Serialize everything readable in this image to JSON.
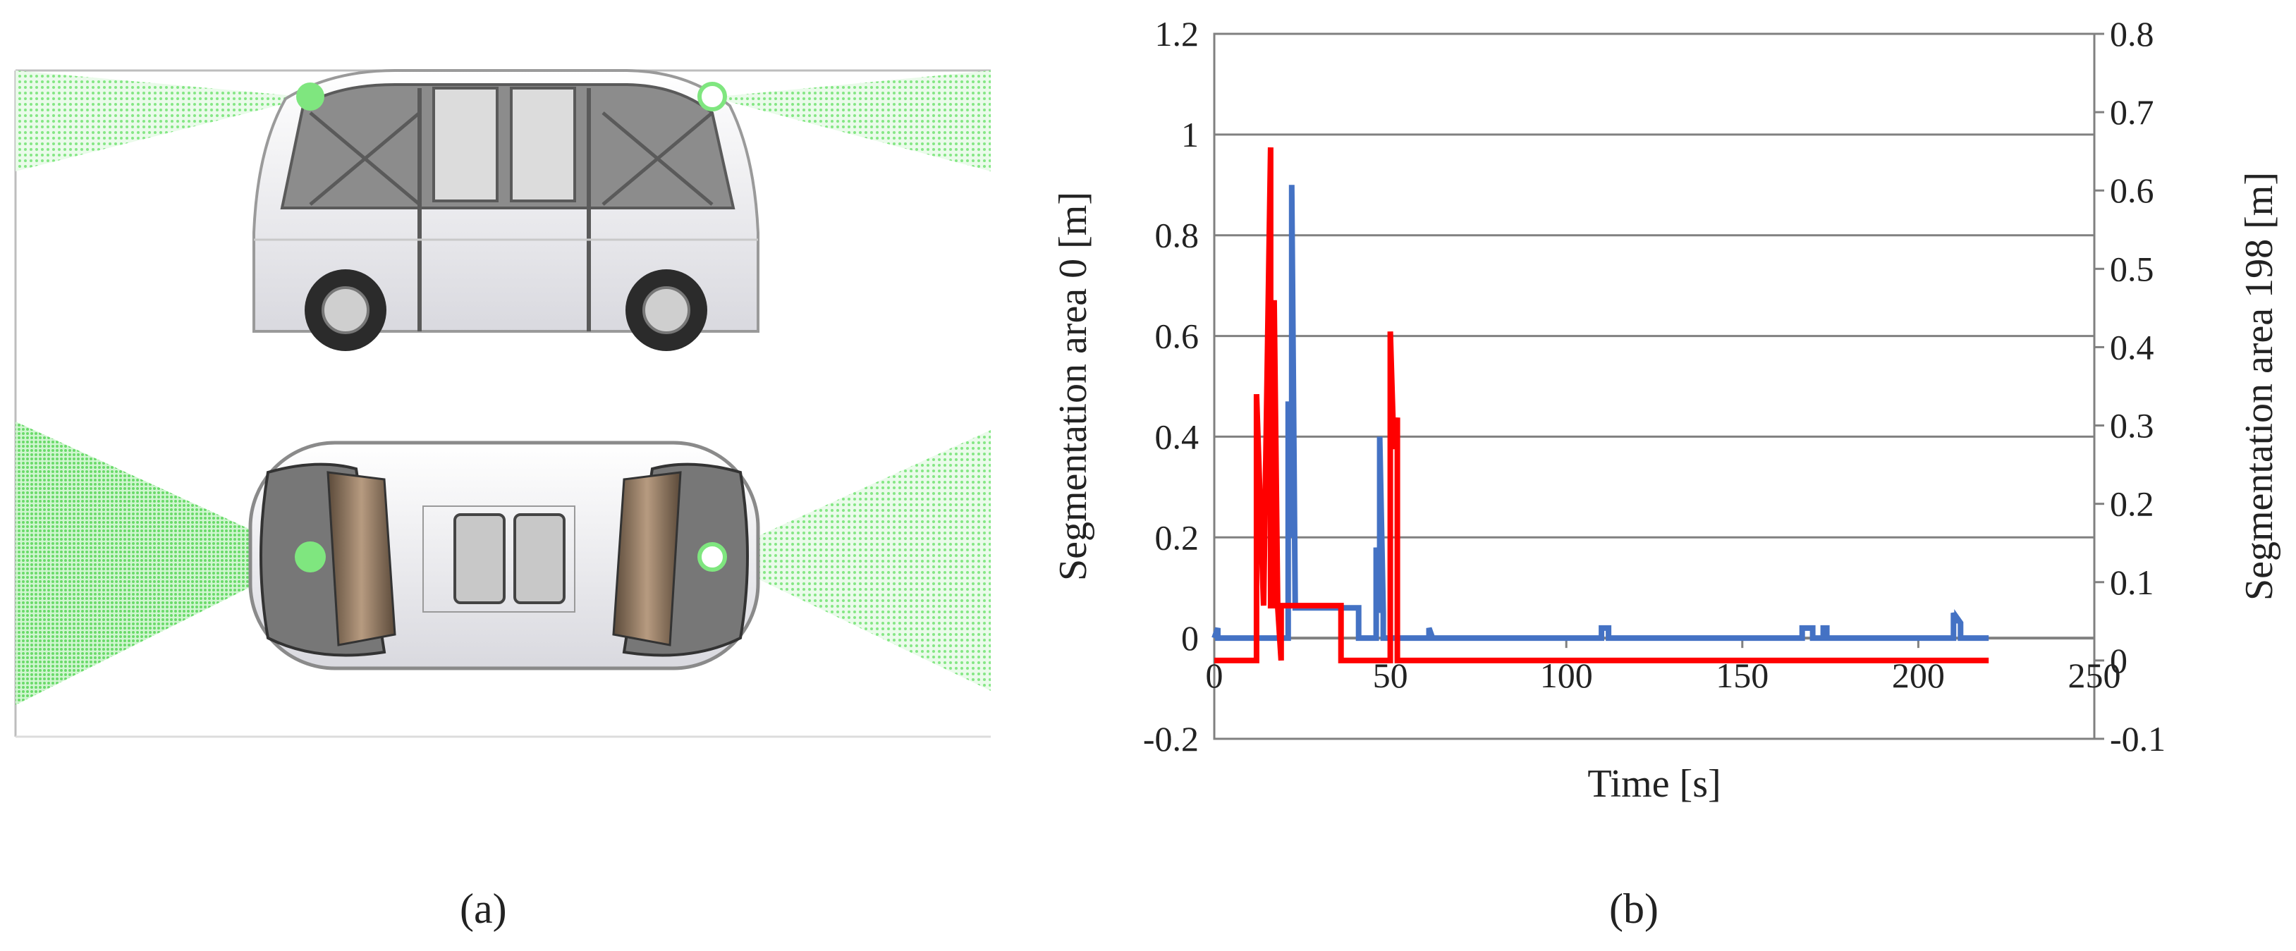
{
  "captions": {
    "a": "(a)",
    "b": "(b)"
  },
  "colors": {
    "sensor_cone": "#7fe67f",
    "vehicle_body": "#f2f2f2",
    "glass": "#8a8a8a",
    "series_left": "#4472c4",
    "series_right": "#ff0000",
    "grid": "#808080"
  },
  "chart_data": {
    "type": "line",
    "xlabel": "Time [s]",
    "ylabel": "Segmentation area 0 [m]",
    "y2label": "Segmentation area 198 [m]",
    "xlim": [
      0,
      250
    ],
    "ylim": [
      -0.2,
      1.2
    ],
    "y2lim": [
      -0.1,
      0.8
    ],
    "x_ticks": [
      0,
      50,
      100,
      150,
      200,
      250
    ],
    "y_ticks": [
      -0.2,
      0,
      0.2,
      0.4,
      0.6,
      0.8,
      1,
      1.2
    ],
    "y2_ticks": [
      -0.1,
      0,
      0.1,
      0.2,
      0.3,
      0.4,
      0.5,
      0.6,
      0.7,
      0.8
    ],
    "grid": "horizontal",
    "legend": "none",
    "series": [
      {
        "axis": "left",
        "color": "#4472c4",
        "x": [
          0,
          1,
          1,
          2,
          2,
          21,
          21,
          22,
          22,
          23,
          23,
          24,
          24,
          25,
          25,
          38,
          38,
          41,
          41,
          46,
          46,
          47,
          47,
          48,
          48,
          49,
          49,
          61,
          61,
          62,
          62,
          110,
          110,
          112,
          112,
          167,
          167,
          170,
          170,
          173,
          173,
          174,
          174,
          210,
          210,
          211,
          211,
          212,
          212,
          220
        ],
        "y": [
          0,
          0.02,
          0,
          0,
          0,
          0,
          0.47,
          0.2,
          0.9,
          0.06,
          0.06,
          0.06,
          0.06,
          0.06,
          0.06,
          0.06,
          0.06,
          0.06,
          0,
          0,
          0.18,
          0.05,
          0.4,
          0.05,
          0,
          0,
          0,
          0,
          0.02,
          0,
          0,
          0,
          0.02,
          0.02,
          0,
          0,
          0.02,
          0.02,
          0,
          0,
          0.02,
          0.02,
          0,
          0,
          0.05,
          0.03,
          0.04,
          0.03,
          0,
          0
        ]
      },
      {
        "axis": "right",
        "color": "#ff0000",
        "x": [
          0,
          12,
          12,
          14,
          14,
          16,
          16,
          17,
          17,
          18,
          18,
          19,
          19,
          20,
          20,
          36,
          36,
          50,
          50,
          51,
          51,
          52,
          52,
          53,
          53,
          220
        ],
        "y": [
          0,
          0,
          0.34,
          0.07,
          0.07,
          0.655,
          0.07,
          0.07,
          0.46,
          0.07,
          0.07,
          0,
          0.07,
          0.07,
          0.07,
          0.07,
          0,
          0,
          0.42,
          0.27,
          0.27,
          0.31,
          0,
          0,
          0,
          0
        ]
      }
    ]
  }
}
